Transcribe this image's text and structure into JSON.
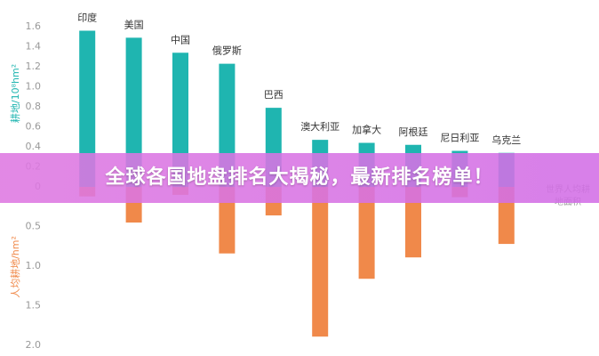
{
  "chart_data": {
    "type": "bar",
    "ylabel": "耕地/10⁸hm²",
    "y2label": "人均耕地/hm²",
    "categories": [
      "印度",
      "美国",
      "中国",
      "俄罗斯",
      "巴西",
      "澳大利亚",
      "加拿大",
      "阿根廷",
      "尼日利亚",
      "乌克兰"
    ],
    "series": [
      {
        "color": "#1fb5b0",
        "axis": "y",
        "values": [
          1.56,
          1.49,
          1.34,
          1.23,
          0.79,
          0.47,
          0.44,
          0.42,
          0.36,
          0.34
        ]
      },
      {
        "color": "#f0894a",
        "axis": "y2",
        "values": [
          0.12,
          0.45,
          0.1,
          0.84,
          0.36,
          1.89,
          1.16,
          0.89,
          0.13,
          0.72
        ]
      }
    ],
    "ylim": [
      0,
      1.6
    ],
    "yticks": [
      0,
      0.2,
      0.4,
      0.6,
      0.8,
      {
        "value": 1,
        "label": "1.0"
      },
      1.2,
      1.4,
      1.6
    ],
    "y2lim": [
      0,
      2
    ],
    "y2ticks": [
      0.5,
      {
        "value": 1,
        "label": "1.0"
      },
      1.5,
      {
        "value": 2,
        "label": "2.0"
      }
    ],
    "annotation": "世界人均耕地面积",
    "banner": "全球各国地盘排名大揭秘，最新排名榜单！"
  }
}
